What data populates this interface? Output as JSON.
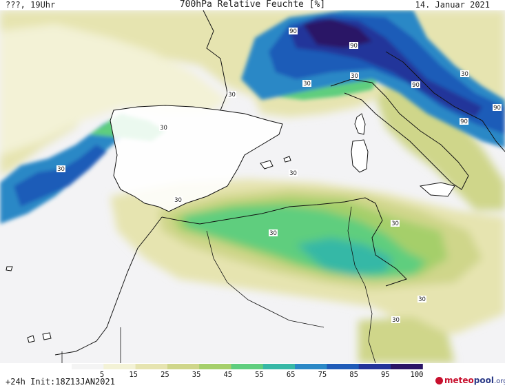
{
  "header": {
    "left": "???, 19Uhr",
    "title": "700hPa Relative Feuchte [%]",
    "date": "14. Januar 2021"
  },
  "footer": {
    "init": "+24h Init:18Z13JAN2021",
    "logo_part1": "meteo",
    "logo_part2": "pool",
    "logo_part3": ".org"
  },
  "legend": {
    "tick_labels": [
      "5",
      "15",
      "25",
      "35",
      "45",
      "55",
      "65",
      "75",
      "85",
      "95",
      "100"
    ],
    "colors": [
      "#f4f4f4",
      "#f3f2d6",
      "#e6e4b0",
      "#cfd68a",
      "#a5cf6a",
      "#5fce7e",
      "#36b8a6",
      "#2a88c6",
      "#1f5bb8",
      "#23349a",
      "#2a1466"
    ]
  },
  "contour_labels": [
    "90",
    "90",
    "90",
    "90",
    "90",
    "30",
    "30",
    "30",
    "30",
    "30",
    "30",
    "30",
    "30",
    "30",
    "30",
    "30",
    "30"
  ],
  "colors": {
    "land_line": "#111111",
    "background": "#f3f3f5"
  }
}
